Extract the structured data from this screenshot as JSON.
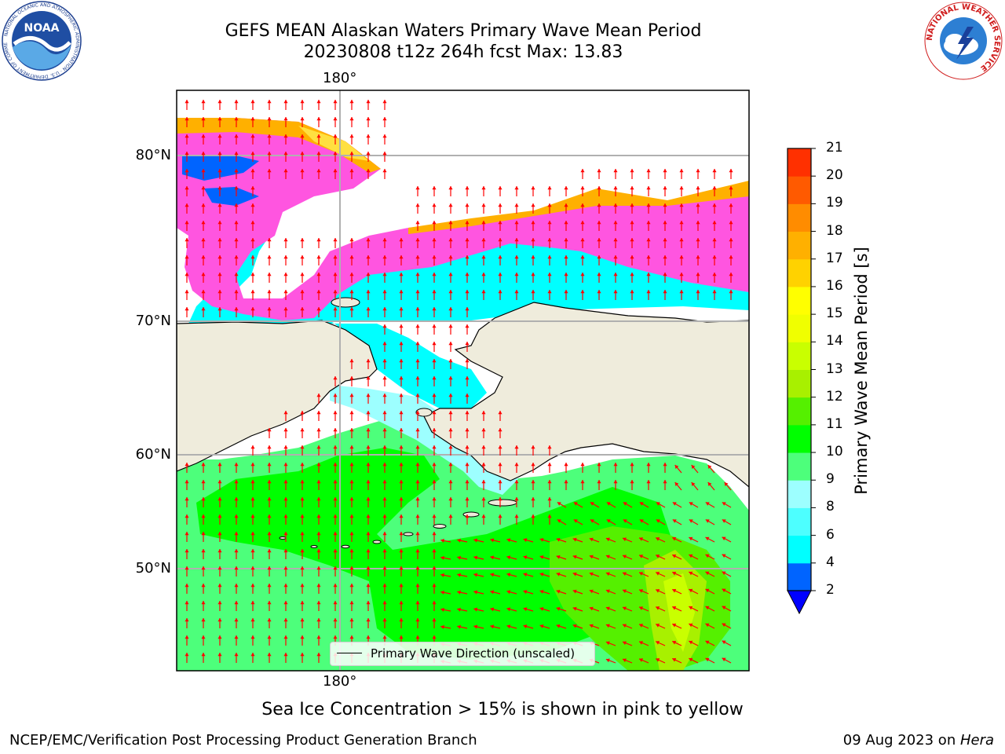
{
  "header": {
    "title_line1": "GEFS MEAN Alaskan Waters Primary Wave Mean Period",
    "title_line2": "20230808 t12z 264h fcst   Max: 13.83"
  },
  "map": {
    "longitude_labels": [
      "180°",
      "180°"
    ],
    "latitude_labels": [
      "80°N",
      "70°N",
      "60°N",
      "50°N"
    ],
    "legend_label": "Primary Wave Direction (unscaled)",
    "vector_color": "#ff0000",
    "land_color": "#efecdc"
  },
  "colorbar": {
    "label": "Primary Wave Mean Period [s]",
    "ticks": [
      2,
      4,
      6,
      8,
      9,
      10,
      11,
      12,
      13,
      14,
      15,
      16,
      17,
      18,
      19,
      20,
      21
    ],
    "colors": [
      "#0064ff",
      "#00ffff",
      "#4dffff",
      "#9dffff",
      "#4dff7b",
      "#00ff00",
      "#55f000",
      "#a8f000",
      "#c9ff00",
      "#f0ff00",
      "#ffff00",
      "#ffd200",
      "#ffb000",
      "#ff8c00",
      "#ff5a00",
      "#ff3000",
      "#ff0000"
    ],
    "under_color": "#0000ff"
  },
  "footer": {
    "subtitle": "Sea Ice Concentration > 15% is shown in pink to yellow",
    "left": "NCEP/EMC/Verification Post Processing Product Generation Branch",
    "date": "09 Aug 2023 on ",
    "machine": "Hera"
  },
  "logos": {
    "noaa": "NOAA",
    "noaa_ring": "NATIONAL OCEANIC AND ATMOSPHERIC ADMINISTRATION · U.S. DEPARTMENT OF COMMERCE",
    "nws_ring": "NATIONAL WEATHER SERVICE"
  }
}
